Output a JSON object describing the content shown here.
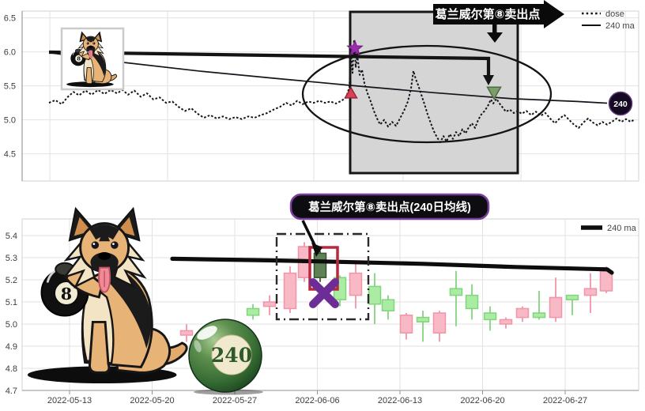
{
  "art": {
    "ball8_label": "8",
    "ball240_label": "240"
  },
  "top_chart": {
    "banner_text": "葛兰威尔第⑧卖出点",
    "badge_label": "240",
    "legend": [
      {
        "label": "dose",
        "style": "dotted"
      },
      {
        "label": "240 ma",
        "style": "solid"
      }
    ]
  },
  "bottom_chart": {
    "callout_text": "葛兰威尔第⑧卖出点(240日均线)",
    "legend": [
      {
        "label": "240 ma",
        "style": "thick"
      }
    ]
  },
  "chart_data": [
    {
      "type": "line",
      "title": "",
      "ylim": [
        4.1,
        6.6
      ],
      "grid": true,
      "legend_position": "top-right",
      "yticks": [
        {
          "label": "6.5",
          "p": 6.5
        },
        {
          "label": "6.0",
          "p": 6.0
        },
        {
          "label": "5.5",
          "p": 5.5
        },
        {
          "label": "5.0",
          "p": 5.0
        },
        {
          "label": "4.5",
          "p": 4.5
        }
      ],
      "vgrid_f": [
        0.0449,
        0.2359,
        0.4731,
        0.6179,
        0.809,
        0.9782
      ],
      "series": [
        {
          "name": "dose",
          "style": "dashed",
          "color": "#14141c",
          "points": [
            [
              0.0436,
              5.25
            ],
            [
              0.0538,
              5.29
            ],
            [
              0.0641,
              5.23
            ],
            [
              0.0744,
              5.34
            ],
            [
              0.0833,
              5.41
            ],
            [
              0.0923,
              5.36
            ],
            [
              0.1026,
              5.43
            ],
            [
              0.1128,
              5.37
            ],
            [
              0.1231,
              5.44
            ],
            [
              0.1333,
              5.38
            ],
            [
              0.1436,
              5.44
            ],
            [
              0.1538,
              5.39
            ],
            [
              0.1628,
              5.44
            ],
            [
              0.1718,
              5.37
            ],
            [
              0.1821,
              5.43
            ],
            [
              0.1923,
              5.34
            ],
            [
              0.2026,
              5.39
            ],
            [
              0.2128,
              5.3
            ],
            [
              0.2231,
              5.33
            ],
            [
              0.2333,
              5.25
            ],
            [
              0.2436,
              5.27
            ],
            [
              0.2538,
              5.19
            ],
            [
              0.2641,
              5.13
            ],
            [
              0.2744,
              5.17
            ],
            [
              0.2846,
              5.09
            ],
            [
              0.2949,
              5.03
            ],
            [
              0.3051,
              5.07
            ],
            [
              0.3154,
              5.02
            ],
            [
              0.3256,
              5.05
            ],
            [
              0.3359,
              5.01
            ],
            [
              0.3462,
              5.04
            ],
            [
              0.3564,
              5.01
            ],
            [
              0.3667,
              5.05
            ],
            [
              0.3769,
              5.03
            ],
            [
              0.3872,
              5.07
            ],
            [
              0.3974,
              5.1
            ],
            [
              0.4077,
              5.15
            ],
            [
              0.4179,
              5.19
            ],
            [
              0.4282,
              5.25
            ],
            [
              0.4372,
              5.21
            ],
            [
              0.4462,
              5.28
            ],
            [
              0.4551,
              5.23
            ],
            [
              0.4641,
              5.27
            ],
            [
              0.4731,
              5.25
            ],
            [
              0.4821,
              5.28
            ],
            [
              0.491,
              5.25
            ],
            [
              0.5,
              5.27
            ],
            [
              0.509,
              5.24
            ],
            [
              0.5179,
              5.28
            ],
            [
              0.5256,
              5.33
            ],
            [
              0.5308,
              5.48
            ],
            [
              0.5333,
              6.07
            ],
            [
              0.5359,
              5.69
            ],
            [
              0.5385,
              6.18
            ],
            [
              0.541,
              5.77
            ],
            [
              0.5436,
              5.95
            ],
            [
              0.5474,
              5.66
            ],
            [
              0.5513,
              5.74
            ],
            [
              0.5551,
              5.54
            ],
            [
              0.5603,
              5.39
            ],
            [
              0.5654,
              5.27
            ],
            [
              0.5705,
              5.13
            ],
            [
              0.5756,
              5.02
            ],
            [
              0.5808,
              4.93
            ],
            [
              0.5872,
              5.0
            ],
            [
              0.5936,
              4.9
            ],
            [
              0.6,
              4.97
            ],
            [
              0.6064,
              4.91
            ],
            [
              0.6128,
              5.02
            ],
            [
              0.6192,
              5.13
            ],
            [
              0.6256,
              5.27
            ],
            [
              0.6308,
              5.46
            ],
            [
              0.6346,
              5.72
            ],
            [
              0.6385,
              5.6
            ],
            [
              0.6423,
              5.51
            ],
            [
              0.6474,
              5.37
            ],
            [
              0.6526,
              5.23
            ],
            [
              0.6577,
              5.08
            ],
            [
              0.6628,
              4.95
            ],
            [
              0.6679,
              4.83
            ],
            [
              0.6731,
              4.74
            ],
            [
              0.6782,
              4.67
            ],
            [
              0.6833,
              4.76
            ],
            [
              0.6885,
              4.68
            ],
            [
              0.6936,
              4.79
            ],
            [
              0.6987,
              4.72
            ],
            [
              0.7038,
              4.82
            ],
            [
              0.709,
              4.76
            ],
            [
              0.7141,
              4.86
            ],
            [
              0.7192,
              4.8
            ],
            [
              0.7244,
              4.89
            ],
            [
              0.7295,
              4.95
            ],
            [
              0.7346,
              4.88
            ],
            [
              0.7397,
              5.0
            ],
            [
              0.7449,
              5.08
            ],
            [
              0.75,
              5.13
            ],
            [
              0.7551,
              5.2
            ],
            [
              0.7603,
              5.3
            ],
            [
              0.7641,
              5.24
            ],
            [
              0.7692,
              5.31
            ],
            [
              0.7744,
              5.24
            ],
            [
              0.7795,
              5.18
            ],
            [
              0.7846,
              5.12
            ],
            [
              0.791,
              5.15
            ],
            [
              0.7974,
              5.1
            ],
            [
              0.8038,
              5.13
            ],
            [
              0.8103,
              5.09
            ],
            [
              0.8179,
              5.13
            ],
            [
              0.8256,
              5.07
            ],
            [
              0.8333,
              5.12
            ],
            [
              0.841,
              5.06
            ],
            [
              0.8487,
              5.1
            ],
            [
              0.8564,
              5.02
            ],
            [
              0.8641,
              4.95
            ],
            [
              0.8718,
              5.02
            ],
            [
              0.8795,
              5.07
            ],
            [
              0.8872,
              5.0
            ],
            [
              0.8949,
              4.93
            ],
            [
              0.9026,
              4.88
            ],
            [
              0.9103,
              4.96
            ],
            [
              0.9179,
              5.02
            ],
            [
              0.9256,
              4.96
            ],
            [
              0.9333,
              4.92
            ],
            [
              0.941,
              4.97
            ],
            [
              0.9487,
              4.93
            ],
            [
              0.9564,
              4.97
            ],
            [
              0.9641,
              5.02
            ],
            [
              0.9718,
              4.97
            ],
            [
              0.9795,
              5.01
            ],
            [
              0.9872,
              4.97
            ],
            [
              0.9923,
              5.0
            ]
          ]
        },
        {
          "name": "240 ma",
          "style": "solid",
          "color": "#14141c",
          "points": [
            [
              0.0436,
              5.99
            ],
            [
              0.09,
              5.93
            ],
            [
              0.159,
              5.85
            ],
            [
              0.2846,
              5.72
            ],
            [
              0.41,
              5.61
            ],
            [
              0.541,
              5.5
            ],
            [
              0.6667,
              5.4
            ],
            [
              0.7949,
              5.31
            ],
            [
              0.9,
              5.27
            ],
            [
              0.9487,
              5.245
            ]
          ]
        }
      ],
      "markers": [
        {
          "shape": "star",
          "color": "#9c2bb0",
          "edge": "#6e1d7e",
          "f": 0.5397,
          "p": 6.05
        },
        {
          "shape": "triangle-up",
          "color": "#d64458",
          "edge": "#9e2436",
          "f": 0.5333,
          "p": 5.38
        },
        {
          "shape": "triangle-down",
          "color": "#7d9e6a",
          "edge": "#4c6b40",
          "f": 0.7654,
          "p": 5.4
        }
      ],
      "badge": {
        "f": 0.9705,
        "p": 5.24
      }
    },
    {
      "type": "candlestick",
      "title": "",
      "ylim": [
        4.7,
        5.475
      ],
      "grid": true,
      "legend_position": "top-right",
      "yticks": [
        {
          "label": "5.4",
          "p": 5.4
        },
        {
          "label": "5.3",
          "p": 5.3
        },
        {
          "label": "5.2",
          "p": 5.2
        },
        {
          "label": "5.1",
          "p": 5.1
        },
        {
          "label": "5.0",
          "p": 5.0
        },
        {
          "label": "4.9",
          "p": 4.9
        },
        {
          "label": "4.8",
          "p": 4.8
        },
        {
          "label": "4.7",
          "p": 4.7
        }
      ],
      "xticks": [
        {
          "label": "2022-05-13",
          "f": 0.0769
        },
        {
          "label": "2022-05-20",
          "f": 0.2109
        },
        {
          "label": "2022-05-27",
          "f": 0.3449
        },
        {
          "label": "2022-06-06",
          "f": 0.4789
        },
        {
          "label": "2022-06-13",
          "f": 0.6128
        },
        {
          "label": "2022-06-20",
          "f": 0.7468
        },
        {
          "label": "2022-06-27",
          "f": 0.8808
        }
      ],
      "candles": [
        [
          0.2667,
          4.97,
          5.0,
          4.92,
          4.95,
          0
        ],
        [
          0.3744,
          5.04,
          5.09,
          5.02,
          5.07,
          0
        ],
        [
          0.4013,
          5.1,
          5.13,
          5.04,
          5.08,
          0
        ],
        [
          0.4346,
          5.23,
          5.26,
          5.05,
          5.07,
          0
        ],
        [
          0.4577,
          5.35,
          5.37,
          5.19,
          5.21,
          0
        ],
        [
          0.4833,
          5.21,
          5.33,
          5.19,
          5.32,
          1
        ],
        [
          0.5154,
          5.11,
          5.22,
          5.08,
          5.21,
          0
        ],
        [
          0.541,
          5.23,
          5.28,
          5.07,
          5.13,
          0
        ],
        [
          0.5718,
          5.09,
          5.23,
          5.0,
          5.17,
          0
        ],
        [
          0.5936,
          5.06,
          5.13,
          5.02,
          5.11,
          0
        ],
        [
          0.6231,
          5.04,
          5.05,
          4.93,
          4.96,
          0
        ],
        [
          0.65,
          5.01,
          5.06,
          4.92,
          5.03,
          0
        ],
        [
          0.6769,
          5.05,
          5.06,
          4.92,
          4.96,
          0
        ],
        [
          0.7038,
          5.13,
          5.24,
          4.99,
          5.16,
          0
        ],
        [
          0.7295,
          5.07,
          5.18,
          5.02,
          5.13,
          0
        ],
        [
          0.759,
          5.02,
          5.08,
          4.97,
          5.05,
          0
        ],
        [
          0.7846,
          5.02,
          5.03,
          4.98,
          5.0,
          0
        ],
        [
          0.8115,
          5.07,
          5.08,
          5.01,
          5.03,
          0
        ],
        [
          0.8385,
          5.03,
          5.15,
          5.02,
          5.05,
          0
        ],
        [
          0.8654,
          5.12,
          5.21,
          5.01,
          5.03,
          0
        ],
        [
          0.8923,
          5.11,
          5.13,
          5.04,
          5.13,
          0
        ],
        [
          0.9218,
          5.16,
          5.23,
          5.05,
          5.13,
          0
        ],
        [
          0.9474,
          5.24,
          5.26,
          5.14,
          5.15,
          0
        ]
      ],
      "ma": {
        "name": "240 ma",
        "color": "#0d0d0d",
        "points": [
          [
            0.2436,
            5.295
          ],
          [
            0.4,
            5.288
          ],
          [
            0.4872,
            5.283
          ],
          [
            0.65,
            5.272
          ],
          [
            0.8,
            5.258
          ],
          [
            0.9487,
            5.247
          ],
          [
            0.9564,
            5.232
          ]
        ]
      },
      "colors": {
        "up_fill": "#a9eca2",
        "up_edge": "#82d47e",
        "down_fill": "#f8b8c5",
        "down_edge": "#f195a8",
        "dark_fill": "#5e8156",
        "dark_edge": "#39522f"
      }
    }
  ]
}
